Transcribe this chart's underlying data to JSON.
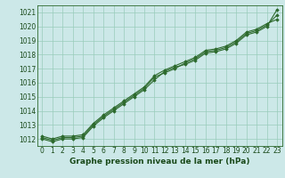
{
  "x": [
    0,
    1,
    2,
    3,
    4,
    5,
    6,
    7,
    8,
    9,
    10,
    11,
    12,
    13,
    14,
    15,
    16,
    17,
    18,
    19,
    20,
    21,
    22,
    23
  ],
  "line1": [
    1012.0,
    1011.8,
    1012.0,
    1012.0,
    1012.1,
    1012.9,
    1013.5,
    1014.0,
    1014.5,
    1015.0,
    1015.5,
    1016.2,
    1016.8,
    1017.1,
    1017.3,
    1017.6,
    1018.1,
    1018.2,
    1018.4,
    1018.8,
    1019.4,
    1019.6,
    1020.0,
    1021.2
  ],
  "line2": [
    1012.1,
    1011.9,
    1012.1,
    1012.1,
    1012.2,
    1013.0,
    1013.6,
    1014.1,
    1014.6,
    1015.1,
    1015.6,
    1016.4,
    1016.7,
    1017.0,
    1017.4,
    1017.7,
    1018.2,
    1018.3,
    1018.5,
    1018.9,
    1019.5,
    1019.7,
    1020.1,
    1020.8
  ],
  "line3": [
    1012.2,
    1012.0,
    1012.2,
    1012.2,
    1012.3,
    1013.1,
    1013.7,
    1014.2,
    1014.7,
    1015.2,
    1015.7,
    1016.5,
    1016.9,
    1017.2,
    1017.5,
    1017.8,
    1018.3,
    1018.4,
    1018.6,
    1019.0,
    1019.6,
    1019.8,
    1020.2,
    1020.5
  ],
  "ylim": [
    1011.5,
    1021.5
  ],
  "yticks": [
    1012,
    1013,
    1014,
    1015,
    1016,
    1017,
    1018,
    1019,
    1020,
    1021
  ],
  "xticks": [
    0,
    1,
    2,
    3,
    4,
    5,
    6,
    7,
    8,
    9,
    10,
    11,
    12,
    13,
    14,
    15,
    16,
    17,
    18,
    19,
    20,
    21,
    22,
    23
  ],
  "xlabel": "Graphe pression niveau de la mer (hPa)",
  "line_color": "#2d6a2d",
  "bg_color": "#cce8e8",
  "grid_color": "#99ccbb",
  "text_color": "#1a4a1a",
  "marker": "D",
  "marker_size": 1.8,
  "line_width": 0.8,
  "xlabel_fontsize": 6.5,
  "tick_fontsize": 5.5,
  "xlabel_fontweight": "bold"
}
